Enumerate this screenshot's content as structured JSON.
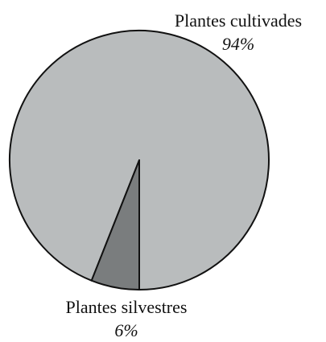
{
  "chart_data": {
    "type": "pie",
    "categories": [
      "Plantes cultivades",
      "Plantes silvestres"
    ],
    "values": [
      94,
      6
    ],
    "value_labels": [
      "94%",
      "6%"
    ],
    "colors": [
      "#b9bcbd",
      "#7a7d7e"
    ]
  }
}
